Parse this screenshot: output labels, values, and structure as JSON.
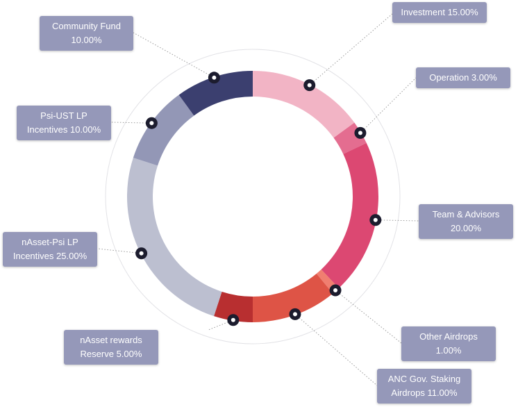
{
  "chart_data": {
    "type": "donut",
    "categories": [
      "Investment",
      "Operation",
      "Team & Advisors",
      "Other Airdrops",
      "ANC Gov. Staking Airdrops",
      "nAsset rewards Reserve",
      "nAsset-Psi LP Incentives",
      "Psi-UST LP Incentives",
      "Community Fund"
    ],
    "values": [
      15,
      3,
      20,
      1,
      11,
      5,
      25,
      10,
      10
    ],
    "value_labels": [
      "15.00%",
      "3.00%",
      "20.00%",
      "1.00%",
      "11.00%",
      "5.00%",
      "25.00%",
      "10.00%",
      "10.00%"
    ],
    "colors": [
      "#f2b4c5",
      "#e46d90",
      "#dc4872",
      "#f07e70",
      "#de5446",
      "#b82f30",
      "#bcbfd0",
      "#9397b6",
      "#3b3f6f"
    ]
  }
}
